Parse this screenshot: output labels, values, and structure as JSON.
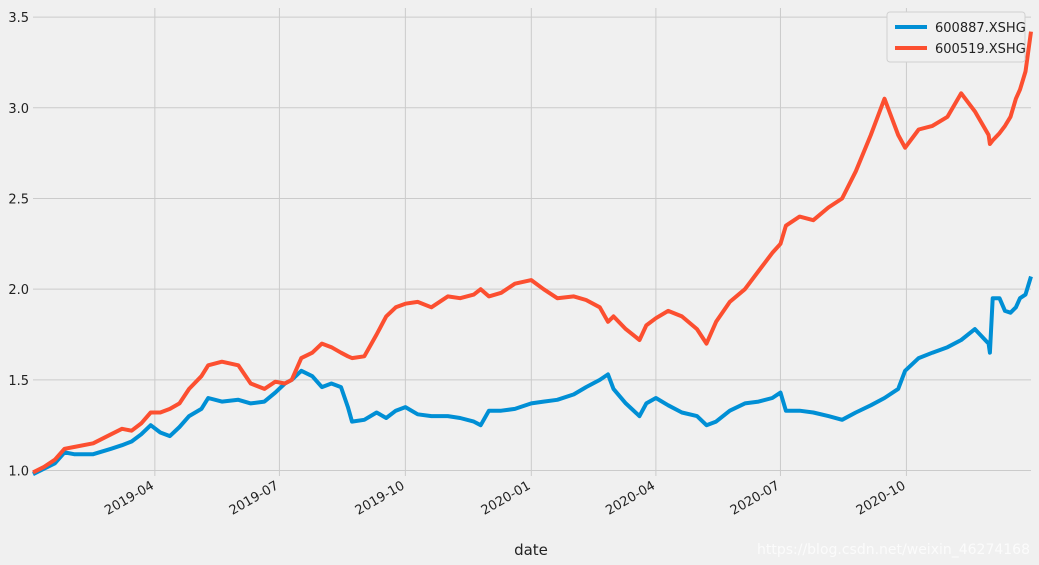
{
  "chart_data": {
    "type": "line",
    "title": "",
    "xlabel": "date",
    "ylabel": "",
    "x_range": [
      "2019-01-02",
      "2020-12-31"
    ],
    "ylim": [
      0.97,
      3.55
    ],
    "y_ticks": [
      {
        "value": 1.0,
        "label": "1.0"
      },
      {
        "value": 1.5,
        "label": "1.5"
      },
      {
        "value": 2.0,
        "label": "2.0"
      },
      {
        "value": 2.5,
        "label": "2.5"
      },
      {
        "value": 3.0,
        "label": "3.0"
      },
      {
        "value": 3.5,
        "label": "3.5"
      }
    ],
    "x_ticks": [
      {
        "date": "2019-04-01",
        "label": "2019-04"
      },
      {
        "date": "2019-07-01",
        "label": "2019-07"
      },
      {
        "date": "2019-10-01",
        "label": "2019-10"
      },
      {
        "date": "2020-01-01",
        "label": "2020-01"
      },
      {
        "date": "2020-04-01",
        "label": "2020-04"
      },
      {
        "date": "2020-07-01",
        "label": "2020-07"
      },
      {
        "date": "2020-10-01",
        "label": "2020-10"
      }
    ],
    "grid": true,
    "legend_position": "top-right",
    "series": [
      {
        "name": "600887.XSHG",
        "color": "#008fd5",
        "points": [
          [
            "2019-01-02",
            0.98
          ],
          [
            "2019-01-10",
            1.01
          ],
          [
            "2019-01-18",
            1.04
          ],
          [
            "2019-01-25",
            1.1
          ],
          [
            "2019-02-01",
            1.09
          ],
          [
            "2019-02-15",
            1.09
          ],
          [
            "2019-02-28",
            1.12
          ],
          [
            "2019-03-08",
            1.14
          ],
          [
            "2019-03-15",
            1.16
          ],
          [
            "2019-03-22",
            1.2
          ],
          [
            "2019-03-29",
            1.25
          ],
          [
            "2019-04-05",
            1.21
          ],
          [
            "2019-04-12",
            1.19
          ],
          [
            "2019-04-19",
            1.24
          ],
          [
            "2019-04-26",
            1.3
          ],
          [
            "2019-05-05",
            1.34
          ],
          [
            "2019-05-10",
            1.4
          ],
          [
            "2019-05-20",
            1.38
          ],
          [
            "2019-06-01",
            1.39
          ],
          [
            "2019-06-10",
            1.37
          ],
          [
            "2019-06-20",
            1.38
          ],
          [
            "2019-06-28",
            1.43
          ],
          [
            "2019-07-05",
            1.48
          ],
          [
            "2019-07-10",
            1.5
          ],
          [
            "2019-07-17",
            1.55
          ],
          [
            "2019-07-25",
            1.52
          ],
          [
            "2019-08-01",
            1.46
          ],
          [
            "2019-08-08",
            1.48
          ],
          [
            "2019-08-15",
            1.46
          ],
          [
            "2019-08-20",
            1.35
          ],
          [
            "2019-08-23",
            1.27
          ],
          [
            "2019-09-01",
            1.28
          ],
          [
            "2019-09-10",
            1.32
          ],
          [
            "2019-09-17",
            1.29
          ],
          [
            "2019-09-24",
            1.33
          ],
          [
            "2019-10-01",
            1.35
          ],
          [
            "2019-10-10",
            1.31
          ],
          [
            "2019-10-20",
            1.3
          ],
          [
            "2019-11-01",
            1.3
          ],
          [
            "2019-11-10",
            1.29
          ],
          [
            "2019-11-20",
            1.27
          ],
          [
            "2019-11-25",
            1.25
          ],
          [
            "2019-12-01",
            1.33
          ],
          [
            "2019-12-10",
            1.33
          ],
          [
            "2019-12-20",
            1.34
          ],
          [
            "2020-01-01",
            1.37
          ],
          [
            "2020-01-10",
            1.38
          ],
          [
            "2020-01-20",
            1.39
          ],
          [
            "2020-02-01",
            1.42
          ],
          [
            "2020-02-10",
            1.46
          ],
          [
            "2020-02-20",
            1.5
          ],
          [
            "2020-02-26",
            1.53
          ],
          [
            "2020-03-01",
            1.45
          ],
          [
            "2020-03-10",
            1.37
          ],
          [
            "2020-03-20",
            1.3
          ],
          [
            "2020-03-25",
            1.37
          ],
          [
            "2020-04-01",
            1.4
          ],
          [
            "2020-04-10",
            1.36
          ],
          [
            "2020-04-20",
            1.32
          ],
          [
            "2020-05-01",
            1.3
          ],
          [
            "2020-05-08",
            1.25
          ],
          [
            "2020-05-15",
            1.27
          ],
          [
            "2020-05-25",
            1.33
          ],
          [
            "2020-06-05",
            1.37
          ],
          [
            "2020-06-15",
            1.38
          ],
          [
            "2020-06-25",
            1.4
          ],
          [
            "2020-07-01",
            1.43
          ],
          [
            "2020-07-05",
            1.33
          ],
          [
            "2020-07-15",
            1.33
          ],
          [
            "2020-07-25",
            1.32
          ],
          [
            "2020-08-05",
            1.3
          ],
          [
            "2020-08-15",
            1.28
          ],
          [
            "2020-08-25",
            1.32
          ],
          [
            "2020-09-05",
            1.36
          ],
          [
            "2020-09-15",
            1.4
          ],
          [
            "2020-09-25",
            1.45
          ],
          [
            "2020-09-30",
            1.55
          ],
          [
            "2020-10-10",
            1.62
          ],
          [
            "2020-10-20",
            1.65
          ],
          [
            "2020-10-31",
            1.68
          ],
          [
            "2020-11-10",
            1.72
          ],
          [
            "2020-11-20",
            1.78
          ],
          [
            "2020-11-30",
            1.7
          ],
          [
            "2020-12-01",
            1.65
          ],
          [
            "2020-12-03",
            1.95
          ],
          [
            "2020-12-08",
            1.95
          ],
          [
            "2020-12-12",
            1.88
          ],
          [
            "2020-12-16",
            1.87
          ],
          [
            "2020-12-20",
            1.9
          ],
          [
            "2020-12-23",
            1.95
          ],
          [
            "2020-12-27",
            1.97
          ],
          [
            "2020-12-31",
            2.07
          ]
        ]
      },
      {
        "name": "600519.XSHG",
        "color": "#fc4f30",
        "points": [
          [
            "2019-01-02",
            0.99
          ],
          [
            "2019-01-10",
            1.02
          ],
          [
            "2019-01-18",
            1.06
          ],
          [
            "2019-01-25",
            1.12
          ],
          [
            "2019-02-01",
            1.13
          ],
          [
            "2019-02-15",
            1.15
          ],
          [
            "2019-02-28",
            1.2
          ],
          [
            "2019-03-08",
            1.23
          ],
          [
            "2019-03-15",
            1.22
          ],
          [
            "2019-03-22",
            1.26
          ],
          [
            "2019-03-29",
            1.32
          ],
          [
            "2019-04-05",
            1.32
          ],
          [
            "2019-04-12",
            1.34
          ],
          [
            "2019-04-19",
            1.37
          ],
          [
            "2019-04-26",
            1.45
          ],
          [
            "2019-05-05",
            1.52
          ],
          [
            "2019-05-10",
            1.58
          ],
          [
            "2019-05-20",
            1.6
          ],
          [
            "2019-06-01",
            1.58
          ],
          [
            "2019-06-10",
            1.48
          ],
          [
            "2019-06-20",
            1.45
          ],
          [
            "2019-06-28",
            1.49
          ],
          [
            "2019-07-05",
            1.48
          ],
          [
            "2019-07-10",
            1.5
          ],
          [
            "2019-07-17",
            1.62
          ],
          [
            "2019-07-25",
            1.65
          ],
          [
            "2019-08-01",
            1.7
          ],
          [
            "2019-08-08",
            1.68
          ],
          [
            "2019-08-15",
            1.65
          ],
          [
            "2019-08-20",
            1.63
          ],
          [
            "2019-08-23",
            1.62
          ],
          [
            "2019-09-01",
            1.63
          ],
          [
            "2019-09-10",
            1.75
          ],
          [
            "2019-09-17",
            1.85
          ],
          [
            "2019-09-24",
            1.9
          ],
          [
            "2019-10-01",
            1.92
          ],
          [
            "2019-10-10",
            1.93
          ],
          [
            "2019-10-20",
            1.9
          ],
          [
            "2019-11-01",
            1.96
          ],
          [
            "2019-11-10",
            1.95
          ],
          [
            "2019-11-20",
            1.97
          ],
          [
            "2019-11-25",
            2.0
          ],
          [
            "2019-12-01",
            1.96
          ],
          [
            "2019-12-10",
            1.98
          ],
          [
            "2019-12-20",
            2.03
          ],
          [
            "2020-01-01",
            2.05
          ],
          [
            "2020-01-10",
            2.0
          ],
          [
            "2020-01-20",
            1.95
          ],
          [
            "2020-02-01",
            1.96
          ],
          [
            "2020-02-10",
            1.94
          ],
          [
            "2020-02-20",
            1.9
          ],
          [
            "2020-02-26",
            1.82
          ],
          [
            "2020-03-01",
            1.85
          ],
          [
            "2020-03-10",
            1.78
          ],
          [
            "2020-03-20",
            1.72
          ],
          [
            "2020-03-25",
            1.8
          ],
          [
            "2020-04-01",
            1.84
          ],
          [
            "2020-04-10",
            1.88
          ],
          [
            "2020-04-20",
            1.85
          ],
          [
            "2020-05-01",
            1.78
          ],
          [
            "2020-05-08",
            1.7
          ],
          [
            "2020-05-15",
            1.82
          ],
          [
            "2020-05-25",
            1.93
          ],
          [
            "2020-06-05",
            2.0
          ],
          [
            "2020-06-15",
            2.1
          ],
          [
            "2020-06-25",
            2.2
          ],
          [
            "2020-07-01",
            2.25
          ],
          [
            "2020-07-05",
            2.35
          ],
          [
            "2020-07-15",
            2.4
          ],
          [
            "2020-07-25",
            2.38
          ],
          [
            "2020-08-05",
            2.45
          ],
          [
            "2020-08-15",
            2.5
          ],
          [
            "2020-08-25",
            2.65
          ],
          [
            "2020-09-05",
            2.85
          ],
          [
            "2020-09-15",
            3.05
          ],
          [
            "2020-09-25",
            2.85
          ],
          [
            "2020-09-30",
            2.78
          ],
          [
            "2020-10-10",
            2.88
          ],
          [
            "2020-10-20",
            2.9
          ],
          [
            "2020-10-31",
            2.95
          ],
          [
            "2020-11-10",
            3.08
          ],
          [
            "2020-11-20",
            2.98
          ],
          [
            "2020-11-30",
            2.85
          ],
          [
            "2020-12-01",
            2.8
          ],
          [
            "2020-12-03",
            2.82
          ],
          [
            "2020-12-08",
            2.86
          ],
          [
            "2020-12-12",
            2.9
          ],
          [
            "2020-12-16",
            2.95
          ],
          [
            "2020-12-20",
            3.05
          ],
          [
            "2020-12-23",
            3.1
          ],
          [
            "2020-12-27",
            3.2
          ],
          [
            "2020-12-31",
            3.42
          ]
        ]
      }
    ]
  },
  "watermark": "https://blog.csdn.net/weixin_46274168"
}
